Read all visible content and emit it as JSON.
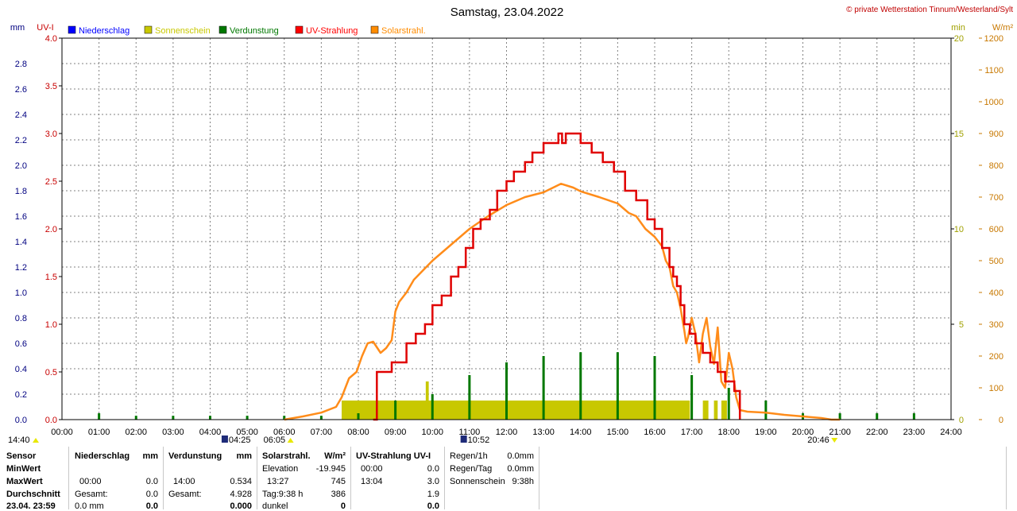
{
  "header": {
    "title": "Samstag, 23.04.2022",
    "credit": "© private Wetterstation Tinnum/Westerland/Sylt"
  },
  "axis_units": {
    "mm": "mm",
    "uv": "UV-I",
    "min": "min",
    "wm2": "W/m²"
  },
  "legend": [
    {
      "label": "Niederschlag",
      "color": "#0000ff"
    },
    {
      "label": "Sonnenschein",
      "color": "#c8c800"
    },
    {
      "label": "Verdunstung",
      "color": "#007800"
    },
    {
      "label": "UV-Strahlung",
      "color": "#ff0000"
    },
    {
      "label": "Solarstrahl.",
      "color": "#ff8c00"
    }
  ],
  "colors": {
    "precip": "#0000ff",
    "sunshine": "#c8c800",
    "evap": "#007800",
    "uv": "#e00000",
    "solar": "#ff8c1a",
    "grid": "#808080",
    "axis_mm": "#000080",
    "axis_uv": "#c80000",
    "axis_sun": "#a0a000",
    "axis_solar": "#c87800"
  },
  "sun_events": {
    "start_time": "14:40",
    "moonrise": "04:25",
    "sunrise": "06:05",
    "moonset": "10:52",
    "sunset": "20:46"
  },
  "chart_data": {
    "type": "line",
    "title": "Samstag, 23.04.2022",
    "x_ticks": [
      "00:00",
      "01:00",
      "02:00",
      "03:00",
      "04:00",
      "05:00",
      "06:00",
      "07:00",
      "08:00",
      "09:00",
      "10:00",
      "11:00",
      "12:00",
      "13:00",
      "14:00",
      "15:00",
      "16:00",
      "17:00",
      "18:00",
      "19:00",
      "20:00",
      "21:00",
      "22:00",
      "23:00",
      "24:00"
    ],
    "xlim_hours": [
      0,
      24
    ],
    "axes": {
      "mm": {
        "label": "mm",
        "ylim": [
          0,
          3.0
        ],
        "ticks": [
          "0.0",
          "0.2",
          "0.4",
          "0.6",
          "0.8",
          "1.0",
          "1.2",
          "1.4",
          "1.6",
          "1.8",
          "2.0",
          "2.2",
          "2.4",
          "2.6",
          "2.8"
        ]
      },
      "uv": {
        "label": "UV-I",
        "ylim": [
          0,
          4.0
        ],
        "ticks": [
          "0.0",
          "0.5",
          "1.0",
          "1.5",
          "2.0",
          "2.5",
          "3.0",
          "3.5",
          "4.0"
        ]
      },
      "sunshine_min": {
        "label": "min",
        "ylim": [
          0,
          20
        ],
        "ticks": [
          "0",
          "5",
          "10",
          "15",
          "20"
        ]
      },
      "solar_wm2": {
        "label": "W/m²",
        "ylim": [
          0,
          1200
        ],
        "ticks": [
          "0",
          "100",
          "200",
          "300",
          "400",
          "500",
          "600",
          "700",
          "800",
          "900",
          "1000",
          "1100",
          "1200"
        ]
      }
    },
    "series": [
      {
        "name": "Solarstrahl.",
        "axis": "solar_wm2",
        "x_hours": [
          6.0,
          6.5,
          7.0,
          7.4,
          7.55,
          7.75,
          7.95,
          8.1,
          8.25,
          8.4,
          8.6,
          8.75,
          8.9,
          9.0,
          9.1,
          9.3,
          9.5,
          9.75,
          10.0,
          10.5,
          11.0,
          11.5,
          12.0,
          12.5,
          13.0,
          13.47,
          13.8,
          14.0,
          14.5,
          15.0,
          15.3,
          15.5,
          15.75,
          16.0,
          16.2,
          16.3,
          16.4,
          16.5,
          16.6,
          16.7,
          16.8,
          16.85,
          16.9,
          17.0,
          17.1,
          17.2,
          17.3,
          17.4,
          17.5,
          17.6,
          17.7,
          17.8,
          17.9,
          18.0,
          18.1,
          18.2,
          18.3,
          18.5,
          19.0,
          19.5,
          20.0,
          20.5,
          20.77,
          21.0
        ],
        "values": [
          0,
          10,
          22,
          40,
          70,
          130,
          150,
          200,
          240,
          245,
          210,
          225,
          250,
          340,
          370,
          400,
          440,
          470,
          500,
          550,
          600,
          640,
          675,
          700,
          715,
          742,
          730,
          718,
          700,
          680,
          650,
          640,
          600,
          575,
          545,
          500,
          480,
          420,
          400,
          350,
          280,
          240,
          260,
          320,
          270,
          180,
          270,
          320,
          230,
          175,
          290,
          120,
          100,
          210,
          160,
          70,
          30,
          25,
          22,
          15,
          10,
          5,
          0,
          0
        ]
      },
      {
        "name": "UV-Strahlung",
        "axis": "uv",
        "x_hours": [
          8.4,
          8.5,
          8.9,
          9.3,
          9.55,
          9.8,
          10.0,
          10.25,
          10.5,
          10.7,
          10.9,
          11.1,
          11.3,
          11.55,
          11.75,
          12.0,
          12.2,
          12.5,
          12.7,
          13.0,
          13.4,
          13.5,
          13.6,
          14.0,
          14.3,
          14.6,
          14.9,
          15.2,
          15.5,
          15.8,
          16.0,
          16.2,
          16.4,
          16.5,
          16.6,
          16.7,
          16.8,
          16.95,
          17.1,
          17.3,
          17.5,
          17.7,
          17.9,
          18.0,
          18.15,
          18.3
        ],
        "values": [
          0.0,
          0.5,
          0.6,
          0.8,
          0.9,
          1.0,
          1.2,
          1.3,
          1.5,
          1.6,
          1.8,
          2.0,
          2.1,
          2.2,
          2.4,
          2.5,
          2.6,
          2.7,
          2.8,
          2.9,
          3.0,
          2.9,
          3.0,
          2.9,
          2.8,
          2.7,
          2.6,
          2.4,
          2.3,
          2.1,
          2.0,
          1.8,
          1.6,
          1.5,
          1.4,
          1.2,
          1.0,
          0.9,
          0.8,
          0.7,
          0.6,
          0.5,
          0.4,
          0.4,
          0.3,
          0.0
        ]
      },
      {
        "name": "Sonnenschein",
        "axis": "sunshine_min",
        "bars": [
          {
            "start": 7.55,
            "end": 16.95,
            "value": 1
          },
          {
            "start": 9.82,
            "end": 9.9,
            "value": 2
          },
          {
            "start": 17.3,
            "end": 17.45,
            "value": 1
          },
          {
            "start": 17.6,
            "end": 17.7,
            "value": 1
          },
          {
            "start": 17.8,
            "end": 17.95,
            "value": 1
          }
        ]
      },
      {
        "name": "Verdunstung",
        "axis": "mm",
        "x_hours": [
          1,
          2,
          3,
          4,
          5,
          6,
          7,
          8,
          9,
          10,
          11,
          12,
          13,
          14,
          15,
          16,
          17,
          18,
          19,
          20,
          21,
          22,
          23
        ],
        "values": [
          0.05,
          0.03,
          0.03,
          0.03,
          0.03,
          0.03,
          0.03,
          0.05,
          0.15,
          0.2,
          0.35,
          0.45,
          0.5,
          0.53,
          0.53,
          0.5,
          0.35,
          0.25,
          0.15,
          0.05,
          0.05,
          0.05,
          0.05
        ]
      },
      {
        "name": "Niederschlag",
        "axis": "mm",
        "x_hours": [],
        "values": []
      }
    ]
  },
  "stats": {
    "sensor": {
      "title": "Sensor",
      "rows": [
        "MinWert",
        "MaxWert",
        "Durchschnitt",
        "23.04. 23:59"
      ]
    },
    "niederschlag": {
      "title": "Niederschlag",
      "unit": "mm",
      "rows": [
        [
          "",
          ""
        ],
        [
          "00:00",
          "0.0"
        ],
        [
          "Gesamt:",
          "0.0"
        ],
        [
          "0.0 mm",
          "0.0"
        ]
      ]
    },
    "verdunstung": {
      "title": "Verdunstung",
      "unit": "mm",
      "rows": [
        [
          "",
          ""
        ],
        [
          "14:00",
          "0.534"
        ],
        [
          "Gesamt:",
          "4.928"
        ],
        [
          "",
          "0.000"
        ]
      ]
    },
    "solar": {
      "title": "Solarstrahl.",
      "unit": "W/m²",
      "rows": [
        [
          "Elevation",
          "-19.945"
        ],
        [
          "13:27",
          "745"
        ],
        [
          "Tag:9:38 h",
          "386"
        ],
        [
          "dunkel",
          "0"
        ]
      ]
    },
    "uv": {
      "title": "UV-Strahlung UV-I",
      "rows": [
        [
          "00:00",
          "0.0"
        ],
        [
          "13:04",
          "3.0"
        ],
        [
          "",
          "1.9"
        ],
        [
          "",
          "0.0"
        ]
      ]
    },
    "rain": {
      "rows": [
        [
          "Regen/1h",
          "0.0mm"
        ],
        [
          "Regen/Tag",
          "0.0mm"
        ],
        [
          "Sonnenschein",
          "9:38h"
        ]
      ]
    }
  }
}
